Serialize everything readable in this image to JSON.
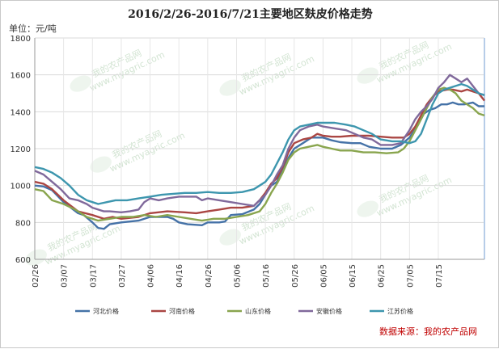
{
  "chart_data": {
    "type": "line",
    "title": "2016/2/26-2016/7/21主要地区麸皮价格走势",
    "ylabel": "单位：元/吨",
    "ylim": [
      600,
      1800
    ],
    "yticks": [
      600,
      800,
      1000,
      1200,
      1400,
      1600,
      1800
    ],
    "grid": true,
    "legend_position": "bottom",
    "x_categories": [
      "02/26",
      "03/07",
      "03/17",
      "03/27",
      "04/06",
      "04/16",
      "04/26",
      "05/06",
      "05/16",
      "05/26",
      "06/05",
      "06/15",
      "06/25",
      "07/05",
      "07/15"
    ],
    "x_index_range": [
      0,
      145
    ],
    "series": [
      {
        "name": "河北价格",
        "color": "#4572a7",
        "points": [
          [
            0,
            1000
          ],
          [
            3,
            995
          ],
          [
            6,
            975
          ],
          [
            10,
            910
          ],
          [
            15,
            850
          ],
          [
            17,
            840
          ],
          [
            20,
            800
          ],
          [
            22,
            770
          ],
          [
            24,
            765
          ],
          [
            26,
            790
          ],
          [
            30,
            800
          ],
          [
            36,
            810
          ],
          [
            40,
            830
          ],
          [
            46,
            830
          ],
          [
            48,
            820
          ],
          [
            50,
            800
          ],
          [
            53,
            790
          ],
          [
            58,
            785
          ],
          [
            60,
            800
          ],
          [
            64,
            800
          ],
          [
            66,
            805
          ],
          [
            68,
            840
          ],
          [
            72,
            845
          ],
          [
            76,
            870
          ],
          [
            78,
            900
          ],
          [
            80,
            950
          ],
          [
            82,
            1000
          ],
          [
            84,
            1020
          ],
          [
            86,
            1080
          ],
          [
            88,
            1150
          ],
          [
            90,
            1200
          ],
          [
            93,
            1230
          ],
          [
            96,
            1260
          ],
          [
            100,
            1260
          ],
          [
            103,
            1245
          ],
          [
            106,
            1235
          ],
          [
            110,
            1230
          ],
          [
            113,
            1230
          ],
          [
            116,
            1210
          ],
          [
            120,
            1200
          ],
          [
            124,
            1200
          ],
          [
            127,
            1220
          ],
          [
            130,
            1260
          ],
          [
            133,
            1330
          ],
          [
            135,
            1390
          ],
          [
            137,
            1410
          ],
          [
            139,
            1420
          ],
          [
            141,
            1440
          ],
          [
            143,
            1440
          ],
          [
            145,
            1450
          ],
          [
            147,
            1440
          ],
          [
            149,
            1440
          ],
          [
            152,
            1450
          ],
          [
            154,
            1430
          ],
          [
            156,
            1430
          ]
        ]
      },
      {
        "name": "河南价格",
        "color": "#aa4643",
        "points": [
          [
            0,
            1020
          ],
          [
            3,
            1010
          ],
          [
            6,
            980
          ],
          [
            10,
            920
          ],
          [
            15,
            860
          ],
          [
            20,
            840
          ],
          [
            24,
            820
          ],
          [
            27,
            830
          ],
          [
            30,
            820
          ],
          [
            36,
            830
          ],
          [
            40,
            850
          ],
          [
            46,
            860
          ],
          [
            52,
            855
          ],
          [
            56,
            850
          ],
          [
            60,
            860
          ],
          [
            64,
            870
          ],
          [
            68,
            880
          ],
          [
            72,
            880
          ],
          [
            76,
            890
          ],
          [
            78,
            920
          ],
          [
            80,
            960
          ],
          [
            82,
            1010
          ],
          [
            84,
            1040
          ],
          [
            86,
            1100
          ],
          [
            88,
            1180
          ],
          [
            90,
            1230
          ],
          [
            93,
            1250
          ],
          [
            96,
            1260
          ],
          [
            98,
            1280
          ],
          [
            100,
            1270
          ],
          [
            103,
            1265
          ],
          [
            106,
            1265
          ],
          [
            110,
            1270
          ],
          [
            113,
            1270
          ],
          [
            116,
            1270
          ],
          [
            120,
            1265
          ],
          [
            124,
            1260
          ],
          [
            128,
            1260
          ],
          [
            130,
            1280
          ],
          [
            132,
            1320
          ],
          [
            134,
            1380
          ],
          [
            136,
            1440
          ],
          [
            138,
            1480
          ],
          [
            140,
            1510
          ],
          [
            143,
            1520
          ],
          [
            145,
            1520
          ],
          [
            148,
            1510
          ],
          [
            150,
            1520
          ],
          [
            152,
            1510
          ],
          [
            154,
            1500
          ],
          [
            156,
            1460
          ]
        ]
      },
      {
        "name": "山东价格",
        "color": "#89a54e",
        "points": [
          [
            0,
            980
          ],
          [
            3,
            970
          ],
          [
            6,
            920
          ],
          [
            10,
            900
          ],
          [
            14,
            870
          ],
          [
            18,
            830
          ],
          [
            22,
            810
          ],
          [
            26,
            820
          ],
          [
            30,
            830
          ],
          [
            34,
            830
          ],
          [
            38,
            840
          ],
          [
            42,
            830
          ],
          [
            46,
            840
          ],
          [
            50,
            830
          ],
          [
            54,
            820
          ],
          [
            58,
            810
          ],
          [
            62,
            820
          ],
          [
            66,
            820
          ],
          [
            70,
            830
          ],
          [
            74,
            840
          ],
          [
            78,
            860
          ],
          [
            80,
            900
          ],
          [
            82,
            960
          ],
          [
            84,
            1010
          ],
          [
            86,
            1070
          ],
          [
            88,
            1140
          ],
          [
            90,
            1180
          ],
          [
            92,
            1200
          ],
          [
            95,
            1210
          ],
          [
            98,
            1220
          ],
          [
            100,
            1210
          ],
          [
            103,
            1200
          ],
          [
            106,
            1190
          ],
          [
            110,
            1190
          ],
          [
            114,
            1180
          ],
          [
            118,
            1180
          ],
          [
            122,
            1175
          ],
          [
            126,
            1180
          ],
          [
            128,
            1200
          ],
          [
            130,
            1240
          ],
          [
            132,
            1300
          ],
          [
            134,
            1360
          ],
          [
            136,
            1420
          ],
          [
            138,
            1480
          ],
          [
            140,
            1520
          ],
          [
            142,
            1530
          ],
          [
            144,
            1520
          ],
          [
            146,
            1500
          ],
          [
            148,
            1460
          ],
          [
            150,
            1440
          ],
          [
            152,
            1420
          ],
          [
            154,
            1390
          ],
          [
            156,
            1380
          ]
        ]
      },
      {
        "name": "安徽价格",
        "color": "#80699b",
        "points": [
          [
            0,
            1080
          ],
          [
            3,
            1060
          ],
          [
            6,
            1020
          ],
          [
            9,
            980
          ],
          [
            12,
            930
          ],
          [
            15,
            920
          ],
          [
            18,
            900
          ],
          [
            20,
            880
          ],
          [
            22,
            870
          ],
          [
            24,
            860
          ],
          [
            26,
            860
          ],
          [
            30,
            855
          ],
          [
            33,
            860
          ],
          [
            36,
            870
          ],
          [
            38,
            910
          ],
          [
            40,
            930
          ],
          [
            43,
            920
          ],
          [
            46,
            930
          ],
          [
            50,
            940
          ],
          [
            54,
            940
          ],
          [
            56,
            940
          ],
          [
            58,
            920
          ],
          [
            60,
            930
          ],
          [
            64,
            920
          ],
          [
            68,
            910
          ],
          [
            72,
            900
          ],
          [
            76,
            890
          ],
          [
            78,
            920
          ],
          [
            80,
            950
          ],
          [
            82,
            1000
          ],
          [
            84,
            1060
          ],
          [
            86,
            1110
          ],
          [
            88,
            1200
          ],
          [
            90,
            1260
          ],
          [
            92,
            1300
          ],
          [
            95,
            1320
          ],
          [
            98,
            1330
          ],
          [
            100,
            1320
          ],
          [
            104,
            1310
          ],
          [
            108,
            1300
          ],
          [
            111,
            1280
          ],
          [
            114,
            1260
          ],
          [
            117,
            1250
          ],
          [
            120,
            1220
          ],
          [
            124,
            1220
          ],
          [
            127,
            1230
          ],
          [
            130,
            1300
          ],
          [
            132,
            1360
          ],
          [
            134,
            1400
          ],
          [
            136,
            1430
          ],
          [
            138,
            1470
          ],
          [
            140,
            1530
          ],
          [
            142,
            1560
          ],
          [
            144,
            1600
          ],
          [
            146,
            1580
          ],
          [
            148,
            1560
          ],
          [
            150,
            1580
          ],
          [
            152,
            1540
          ],
          [
            154,
            1500
          ],
          [
            156,
            1490
          ]
        ]
      },
      {
        "name": "江苏价格",
        "color": "#3d96ae",
        "points": [
          [
            0,
            1100
          ],
          [
            3,
            1090
          ],
          [
            6,
            1070
          ],
          [
            9,
            1040
          ],
          [
            12,
            1000
          ],
          [
            15,
            950
          ],
          [
            18,
            920
          ],
          [
            20,
            910
          ],
          [
            22,
            900
          ],
          [
            25,
            910
          ],
          [
            28,
            920
          ],
          [
            32,
            920
          ],
          [
            36,
            930
          ],
          [
            40,
            940
          ],
          [
            44,
            950
          ],
          [
            48,
            955
          ],
          [
            52,
            960
          ],
          [
            56,
            960
          ],
          [
            60,
            965
          ],
          [
            64,
            960
          ],
          [
            68,
            960
          ],
          [
            72,
            965
          ],
          [
            76,
            980
          ],
          [
            78,
            1000
          ],
          [
            80,
            1020
          ],
          [
            82,
            1060
          ],
          [
            84,
            1120
          ],
          [
            86,
            1180
          ],
          [
            88,
            1250
          ],
          [
            90,
            1300
          ],
          [
            92,
            1320
          ],
          [
            95,
            1330
          ],
          [
            98,
            1340
          ],
          [
            101,
            1340
          ],
          [
            104,
            1340
          ],
          [
            108,
            1330
          ],
          [
            111,
            1320
          ],
          [
            114,
            1300
          ],
          [
            117,
            1280
          ],
          [
            120,
            1250
          ],
          [
            124,
            1240
          ],
          [
            127,
            1240
          ],
          [
            130,
            1230
          ],
          [
            132,
            1240
          ],
          [
            134,
            1280
          ],
          [
            136,
            1360
          ],
          [
            138,
            1440
          ],
          [
            140,
            1500
          ],
          [
            142,
            1520
          ],
          [
            144,
            1530
          ],
          [
            146,
            1540
          ],
          [
            148,
            1550
          ],
          [
            150,
            1540
          ],
          [
            152,
            1520
          ],
          [
            154,
            1500
          ],
          [
            156,
            1490
          ]
        ]
      }
    ],
    "source": "数据来源：我的农产品网"
  },
  "watermark": {
    "cn": "我的农产品网",
    "url": "www.myagric.com"
  }
}
